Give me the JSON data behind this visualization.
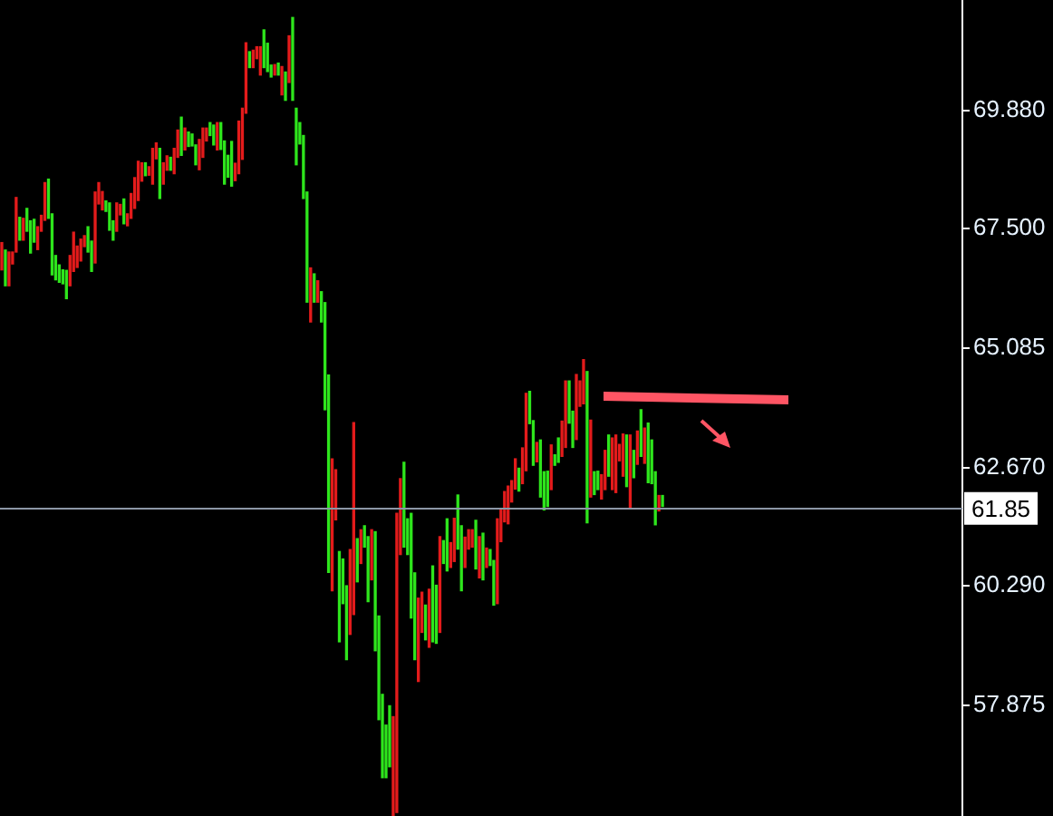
{
  "chart_data": {
    "type": "bar",
    "categories": [
      null,
      null,
      null,
      null,
      null,
      null,
      null,
      null,
      null,
      null,
      null,
      null,
      null,
      null,
      null,
      null,
      null,
      null,
      null,
      null,
      null,
      null,
      null,
      null,
      null,
      null,
      null,
      null,
      null,
      null,
      null,
      null,
      null,
      null,
      null,
      null,
      null,
      null,
      null,
      null,
      null,
      null,
      null,
      null,
      null,
      null,
      null,
      null,
      null,
      null,
      null,
      null,
      null,
      null,
      null,
      null,
      null,
      null,
      null,
      null,
      null,
      null,
      null,
      null,
      null,
      null,
      null,
      null,
      null,
      null,
      null,
      null,
      null,
      null,
      null,
      null,
      null,
      null,
      null,
      null,
      null,
      null,
      null,
      null,
      null,
      null,
      null,
      null,
      null,
      null,
      null,
      null,
      null,
      null,
      null,
      null,
      null,
      null,
      null,
      null,
      null,
      null,
      null,
      null,
      null,
      null,
      null,
      null,
      null,
      null,
      null,
      null,
      null,
      null,
      null,
      null,
      null,
      null,
      null,
      null,
      null,
      null,
      null,
      null,
      null,
      null,
      null,
      null,
      null,
      null,
      null,
      null,
      null,
      null,
      null,
      null,
      null,
      null,
      null,
      null,
      null,
      null,
      null,
      null,
      null,
      null,
      null,
      null,
      null,
      null,
      null,
      null,
      null,
      null,
      null,
      null,
      null,
      null,
      null,
      null,
      null,
      null,
      null,
      null,
      null,
      null,
      null,
      null,
      null,
      null,
      null,
      null,
      null,
      null,
      null,
      null,
      null,
      null,
      null,
      null,
      null,
      null,
      null,
      null,
      null,
      null,
      null,
      null,
      null,
      null,
      null,
      null,
      null,
      null,
      null,
      null,
      null,
      null,
      null,
      null,
      null,
      null,
      null,
      null,
      null,
      null,
      null,
      null,
      null,
      null,
      null,
      null,
      null,
      null,
      null,
      null,
      null,
      null,
      null,
      null,
      null,
      null,
      null,
      null,
      null,
      null,
      null,
      null,
      null,
      null,
      null,
      null,
      null,
      null,
      null,
      null,
      null,
      null,
      null,
      null,
      null,
      null,
      null,
      null,
      null,
      null,
      null,
      null,
      null,
      null,
      null,
      null,
      null,
      null,
      null,
      null,
      null,
      null,
      null,
      null,
      null,
      null,
      null,
      null,
      null,
      null,
      null,
      null
    ],
    "base": [
      66.66,
      66.34,
      66.34,
      66.78,
      67.02,
      67.26,
      67.26,
      67.44,
      67.0,
      67.22,
      67.07,
      67.44,
      67.66,
      67.7,
      66.56,
      66.46,
      66.41,
      66.38,
      66.08,
      66.34,
      66.63,
      66.71,
      66.84,
      67.13,
      67.02,
      66.63,
      66.8,
      67.99,
      67.87,
      67.84,
      67.46,
      67.26,
      67.44,
      67.77,
      67.59,
      67.55,
      67.7,
      67.9,
      68.06,
      68.45,
      68.56,
      68.57,
      68.39,
      68.9,
      68.1,
      68.39,
      68.67,
      68.67,
      68.6,
      68.93,
      68.97,
      69.08,
      69.15,
      69.16,
      68.78,
      68.68,
      68.93,
      69.26,
      69.37,
      69.18,
      69.08,
      69.09,
      68.39,
      68.53,
      68.35,
      68.46,
      68.6,
      68.89,
      69.82,
      70.74,
      70.74,
      70.92,
      70.59,
      70.74,
      70.66,
      70.55,
      70.59,
      70.59,
      70.19,
      70.08,
      70.44,
      70.08,
      68.78,
      69.2,
      68.1,
      66.01,
      65.61,
      66.01,
      66.01,
      65.61,
      63.84,
      60.56,
      60.19,
      61.62,
      59.16,
      59.93,
      58.8,
      59.31,
      59.71,
      60.37,
      60.74,
      61.07,
      59.97,
      60.41,
      58.98,
      57.59,
      56.42,
      56.42,
      56.64,
      55.64,
      55.72,
      60.92,
      61.07,
      60.92,
      59.64,
      58.8,
      58.36,
      59.35,
      59.2,
      59.05,
      59.16,
      59.13,
      59.35,
      60.74,
      60.59,
      60.66,
      60.78,
      61.03,
      60.19,
      60.66,
      61.03,
      61.07,
      60.63,
      60.45,
      60.41,
      60.66,
      60.7,
      59.9,
      59.93,
      61.18,
      61.58,
      61.54,
      61.98,
      62.24,
      62.2,
      62.35,
      62.61,
      63.56,
      62.72,
      62.79,
      62.08,
      61.82,
      61.89,
      62.23,
      62.72,
      62.78,
      62.9,
      63.08,
      63.57,
      63.08,
      63.24,
      63.91,
      63.96,
      61.56,
      62.08,
      62.13,
      62.23,
      62.04,
      62.23,
      62.5,
      62.23,
      62.17,
      62.81,
      62.5,
      62.29,
      61.84,
      62.47,
      62.74,
      62.9,
      62.76,
      62.37,
      62.35,
      61.52,
      61.8,
      61.89,
      null,
      null,
      null,
      null,
      null,
      null,
      null,
      null,
      null,
      null,
      null,
      null,
      null,
      null,
      null,
      null,
      null,
      null,
      null,
      null,
      null,
      null,
      null,
      null,
      null,
      null,
      null,
      null,
      null,
      null,
      null,
      null,
      null,
      null,
      null,
      null,
      null,
      null,
      null,
      null,
      null,
      null,
      null,
      null,
      null,
      null,
      null,
      null,
      null,
      null,
      null,
      null,
      null,
      null,
      null,
      null,
      null,
      null,
      null,
      null,
      null,
      null,
      null,
      null,
      null,
      null,
      null,
      null,
      null,
      null,
      null,
      null,
      null,
      null,
      null,
      null,
      null,
      null,
      null,
      null,
      null,
      null,
      null
    ],
    "values": [
      0.55,
      0.72,
      0.68,
      0.24,
      1.1,
      0.46,
      0.44,
      0.46,
      0.65,
      0.46,
      0.46,
      0.32,
      0.76,
      0.79,
      1.23,
      0.49,
      0.35,
      0.28,
      0.57,
      0.61,
      0.79,
      0.43,
      0.44,
      0.22,
      0.51,
      0.61,
      1.43,
      0.43,
      0.37,
      0.21,
      0.55,
      0.39,
      0.57,
      0.21,
      0.5,
      0.24,
      0.5,
      0.62,
      0.79,
      0.37,
      0.26,
      0.17,
      0.72,
      0.32,
      1.01,
      0.43,
      0.29,
      0.26,
      0.51,
      0.55,
      0.77,
      0.44,
      0.29,
      0.24,
      0.4,
      0.61,
      0.59,
      0.26,
      0.26,
      0.4,
      0.55,
      0.54,
      0.87,
      0.44,
      0.9,
      0.35,
      1.06,
      1.03,
      1.42,
      0.32,
      0.35,
      0.24,
      0.57,
      0.76,
      0.57,
      0.24,
      0.21,
      0.24,
      0.57,
      0.57,
      0.94,
      1.67,
      1.14,
      0.43,
      1.27,
      2.22,
      1.09,
      0.57,
      0.43,
      0.61,
      2.16,
      3.98,
      2.66,
      1.01,
      1.82,
      0.9,
      1.49,
      1.71,
      3.87,
      0.87,
      0.68,
      0.43,
      1.31,
      1.01,
      2.4,
      2.09,
      1.68,
      1.06,
      1.23,
      2.01,
      6.03,
      1.53,
      1.71,
      0.72,
      2.11,
      1.75,
      1.68,
      0.81,
      0.7,
      1.17,
      1.53,
      1.17,
      1.93,
      0.46,
      1.05,
      0.5,
      0.87,
      1.09,
      1.31,
      0.61,
      0.39,
      0.35,
      0.98,
      0.83,
      0.94,
      0.39,
      0.32,
      0.9,
      1.71,
      0.65,
      0.61,
      0.76,
      0.43,
      0.61,
      0.46,
      0.72,
      1.56,
      0.65,
      0.9,
      0.39,
      1.15,
      0.77,
      0.71,
      0.9,
      0.21,
      0.49,
      0.71,
      1.34,
      0.85,
      0.73,
      1.31,
      0.51,
      0.89,
      3.05,
      1.55,
      0.46,
      0.37,
      0.49,
      0.79,
      0.83,
      1.04,
      1.16,
      0.33,
      0.85,
      1.04,
      1.49,
      0.55,
      0.67,
      0.94,
      0.71,
      1.2,
      0.88,
      1.07,
      0.31,
      0.22,
      null,
      null,
      null,
      null,
      null,
      null,
      null,
      null,
      null,
      null,
      null,
      null,
      null,
      null,
      null,
      null,
      null,
      null,
      null,
      null,
      null,
      null,
      null,
      null,
      null,
      null,
      null,
      null,
      null,
      null,
      null,
      null,
      null,
      null,
      null,
      null,
      null,
      null,
      null,
      null,
      null,
      null,
      null,
      null,
      null,
      null,
      null,
      null,
      null,
      null,
      null,
      null,
      null,
      null,
      null,
      null,
      null,
      null,
      null,
      null,
      null,
      null,
      null,
      null,
      null,
      null,
      null,
      null,
      null,
      null,
      null,
      null,
      null,
      null,
      null,
      null,
      null,
      null,
      null,
      null,
      null,
      null,
      null
    ],
    "colors": [
      "#e31b1b",
      "#2ee51c",
      "#e31b1b",
      "#e31b1b",
      "#e31b1b",
      "#2ee51c",
      "#e31b1b",
      "#2ee51c",
      "#2ee51c",
      "#2ee51c",
      "#e31b1b",
      "#e31b1b",
      "#e31b1b",
      "#2ee51c",
      "#2ee51c",
      "#2ee51c",
      "#2ee51c",
      "#2ee51c",
      "#2ee51c",
      "#e31b1b",
      "#e31b1b",
      "#e31b1b",
      "#e31b1b",
      "#e31b1b",
      "#2ee51c",
      "#2ee51c",
      "#e31b1b",
      "#e31b1b",
      "#e31b1b",
      "#2ee51c",
      "#2ee51c",
      "#2ee51c",
      "#e31b1b",
      "#e31b1b",
      "#2ee51c",
      "#e31b1b",
      "#e31b1b",
      "#e31b1b",
      "#e31b1b",
      "#e31b1b",
      "#2ee51c",
      "#e31b1b",
      "#e31b1b",
      "#e31b1b",
      "#2ee51c",
      "#e31b1b",
      "#e31b1b",
      "#2ee51c",
      "#e31b1b",
      "#e31b1b",
      "#2ee51c",
      "#e31b1b",
      "#2ee51c",
      "#2ee51c",
      "#2ee51c",
      "#e31b1b",
      "#e31b1b",
      "#e31b1b",
      "#2ee51c",
      "#2ee51c",
      "#e31b1b",
      "#2ee51c",
      "#2ee51c",
      "#2ee51c",
      "#2ee51c",
      "#e31b1b",
      "#e31b1b",
      "#e31b1b",
      "#e31b1b",
      "#2ee51c",
      "#e31b1b",
      "#e31b1b",
      "#e31b1b",
      "#2ee51c",
      "#2ee51c",
      "#2ee51c",
      "#e31b1b",
      "#2ee51c",
      "#e31b1b",
      "#2ee51c",
      "#e31b1b",
      "#2ee51c",
      "#2ee51c",
      "#2ee51c",
      "#2ee51c",
      "#2ee51c",
      "#e31b1b",
      "#2ee51c",
      "#e31b1b",
      "#2ee51c",
      "#2ee51c",
      "#2ee51c",
      "#e31b1b",
      "#e31b1b",
      "#2ee51c",
      "#2ee51c",
      "#2ee51c",
      "#e31b1b",
      "#e31b1b",
      "#2ee51c",
      "#e31b1b",
      "#2ee51c",
      "#2ee51c",
      "#e31b1b",
      "#2ee51c",
      "#2ee51c",
      "#2ee51c",
      "#2ee51c",
      "#2ee51c",
      "#e31b1b",
      "#e31b1b",
      "#e31b1b",
      "#2ee51c",
      "#2ee51c",
      "#2ee51c",
      "#2ee51c",
      "#e31b1b",
      "#e31b1b",
      "#2ee51c",
      "#e31b1b",
      "#2ee51c",
      "#2ee51c",
      "#e31b1b",
      "#2ee51c",
      "#2ee51c",
      "#e31b1b",
      "#e31b1b",
      "#2ee51c",
      "#2ee51c",
      "#e31b1b",
      "#e31b1b",
      "#e31b1b",
      "#2ee51c",
      "#e31b1b",
      "#2ee51c",
      "#e31b1b",
      "#2ee51c",
      "#2ee51c",
      "#e31b1b",
      "#e31b1b",
      "#e31b1b",
      "#e31b1b",
      "#e31b1b",
      "#e31b1b",
      "#2ee51c",
      "#e31b1b",
      "#e31b1b",
      "#2ee51c",
      "#2ee51c",
      "#e31b1b",
      "#2ee51c",
      "#2ee51c",
      "#2ee51c",
      "#e31b1b",
      "#2ee51c",
      "#2ee51c",
      "#e31b1b",
      "#e31b1b",
      "#2ee51c",
      "#2ee51c",
      "#e31b1b",
      "#e31b1b",
      "#e31b1b",
      "#2ee51c",
      "#e31b1b",
      "#2ee51c",
      "#2ee51c",
      "#e31b1b",
      "#e31b1b",
      "#2ee51c",
      "#e31b1b",
      "#e31b1b",
      "#e31b1b",
      "#e31b1b",
      "#2ee51c",
      "#e31b1b",
      "#2ee51c",
      "#e31b1b",
      "#2ee51c",
      "#e31b1b",
      "#2ee51c",
      "#2ee51c",
      "#2ee51c",
      "#e31b1b",
      "#2ee51c",
      null,
      null,
      null,
      null,
      null,
      null,
      null,
      null,
      null,
      null,
      null,
      null,
      null,
      null,
      null,
      null,
      null,
      null,
      null,
      null,
      null,
      null,
      null,
      null,
      null,
      null,
      null,
      null,
      null,
      null,
      null,
      null,
      null,
      null,
      null,
      null,
      null,
      null,
      null,
      null,
      null,
      null,
      null,
      null,
      null,
      null,
      null,
      null,
      null,
      null,
      null,
      null,
      null,
      null,
      null,
      null,
      null,
      null,
      null,
      null,
      null,
      null,
      null,
      null,
      null,
      null,
      null,
      null,
      null,
      null,
      null,
      null,
      null,
      null,
      null,
      null,
      null,
      null,
      null,
      null,
      null,
      null,
      null
    ],
    "ylim": [
      55.64,
      72.11
    ],
    "yticks": [
      {
        "value": 69.88,
        "label": "69.880"
      },
      {
        "value": 67.5,
        "label": "67.500"
      },
      {
        "value": 65.085,
        "label": "65.085"
      },
      {
        "value": 62.67,
        "label": "62.670"
      },
      {
        "value": 60.29,
        "label": "60.290"
      },
      {
        "value": 57.875,
        "label": "57.875"
      }
    ],
    "ref_lines": [
      {
        "axis": "y",
        "value": 61.85,
        "label": "61.85",
        "color": "#8c96a6"
      }
    ],
    "tick_labels": "y",
    "grid": false,
    "legend": false
  }
}
